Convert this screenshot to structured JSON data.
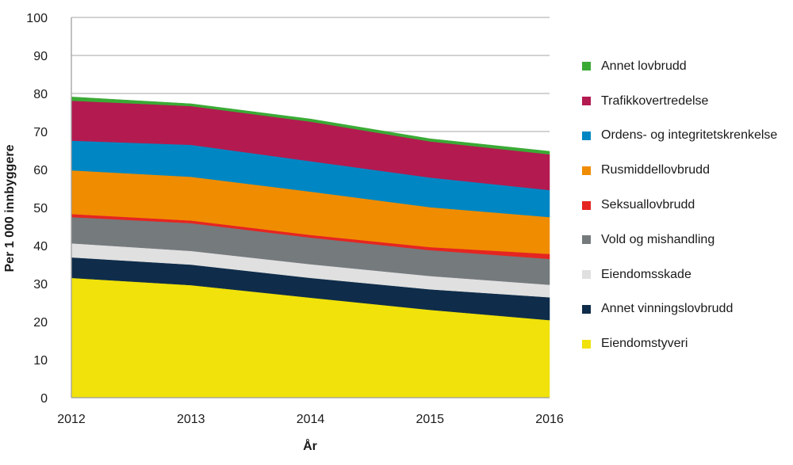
{
  "chart_data": {
    "type": "area",
    "stacked": true,
    "title": "",
    "xlabel": "År",
    "ylabel": "Per 1 000 innbyggere",
    "x": [
      "2012",
      "2013",
      "2014",
      "2015",
      "2016"
    ],
    "ylim": [
      0,
      100
    ],
    "yticks": [
      0,
      10,
      20,
      30,
      40,
      50,
      60,
      70,
      80,
      90,
      100
    ],
    "grid": true,
    "legend_position": "right",
    "series": [
      {
        "name": "Eiendomstyveri",
        "color": "#f0e20a",
        "values": [
          31.5,
          29.6,
          26.3,
          23.1,
          20.4
        ]
      },
      {
        "name": "Annet vinningslovbrudd",
        "color": "#0f2d4a",
        "values": [
          5.4,
          5.4,
          5.2,
          5.4,
          6.0
        ]
      },
      {
        "name": "Eiendomsskade",
        "color": "#e0e0e0",
        "values": [
          3.7,
          3.6,
          3.6,
          3.5,
          3.3
        ]
      },
      {
        "name": "Vold og mishandling",
        "color": "#757a7d",
        "values": [
          6.9,
          7.3,
          7.0,
          6.8,
          6.8
        ]
      },
      {
        "name": "Seksuallovbrudd",
        "color": "#e52521",
        "values": [
          0.8,
          0.7,
          0.7,
          0.8,
          1.3
        ]
      },
      {
        "name": "Rusmiddellovbrudd",
        "color": "#f08c00",
        "values": [
          11.5,
          11.5,
          11.4,
          10.5,
          9.7
        ]
      },
      {
        "name": "Ordens- og integritetskrenkelse",
        "color": "#0087c3",
        "values": [
          7.8,
          8.4,
          8.0,
          7.8,
          7.1
        ]
      },
      {
        "name": "Trafikkovertredelse",
        "color": "#b31a50",
        "values": [
          10.5,
          10.2,
          10.4,
          9.5,
          9.4
        ]
      },
      {
        "name": "Annet lovbrudd",
        "color": "#3aaa35",
        "values": [
          1.0,
          0.6,
          0.7,
          0.7,
          0.8
        ]
      }
    ]
  }
}
